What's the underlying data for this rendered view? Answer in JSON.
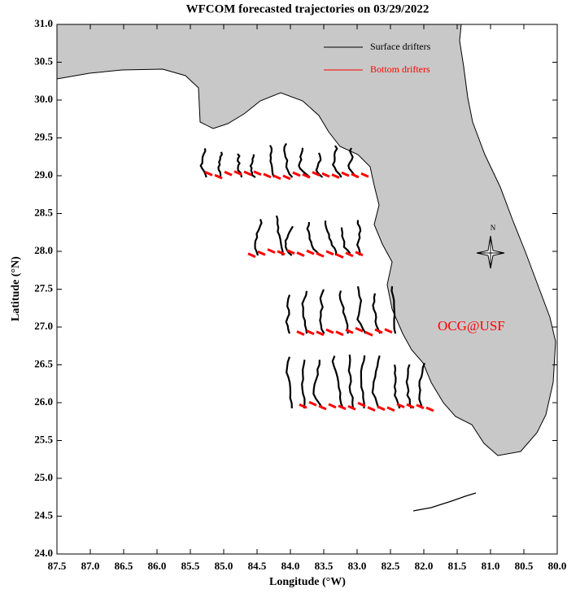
{
  "chart_data": {
    "type": "map",
    "title": "WFCOM forecasted trajectories on 03/29/2022",
    "x_label": "Longitude (°W)",
    "y_label": "Latitude (°N)",
    "xlim": [
      87.5,
      80.0
    ],
    "ylim": [
      24.0,
      31.0
    ],
    "xticks": [
      87.5,
      {
        "value": 87,
        "label": "87.0"
      },
      86.5,
      {
        "value": 86,
        "label": "86.0"
      },
      85.5,
      {
        "value": 85,
        "label": "85.0"
      },
      84.5,
      {
        "value": 84,
        "label": "84.0"
      },
      83.5,
      {
        "value": 83,
        "label": "83.0"
      },
      82.5,
      {
        "value": 82,
        "label": "82.0"
      },
      81.5,
      {
        "value": 81,
        "label": "81.0"
      },
      80.5,
      {
        "value": 80,
        "label": "80.0"
      }
    ],
    "yticks": [
      {
        "value": 24,
        "label": "24.0"
      },
      24.5,
      {
        "value": 25,
        "label": "25.0"
      },
      25.5,
      {
        "value": 26,
        "label": "26.0"
      },
      26.5,
      {
        "value": 27,
        "label": "27.0"
      },
      27.5,
      {
        "value": 28,
        "label": "28.0"
      },
      28.5,
      {
        "value": 29,
        "label": "29.0"
      },
      29.5,
      {
        "value": 30,
        "label": "30.0"
      },
      30.5,
      {
        "value": 31,
        "label": "31.0"
      }
    ],
    "legend": [
      {
        "name": "Surface drifters",
        "color": "#000000"
      },
      {
        "name": "Bottom drifters",
        "color": "#ff0000"
      }
    ],
    "annotation": "OCG@USF",
    "compass_label": "N"
  }
}
